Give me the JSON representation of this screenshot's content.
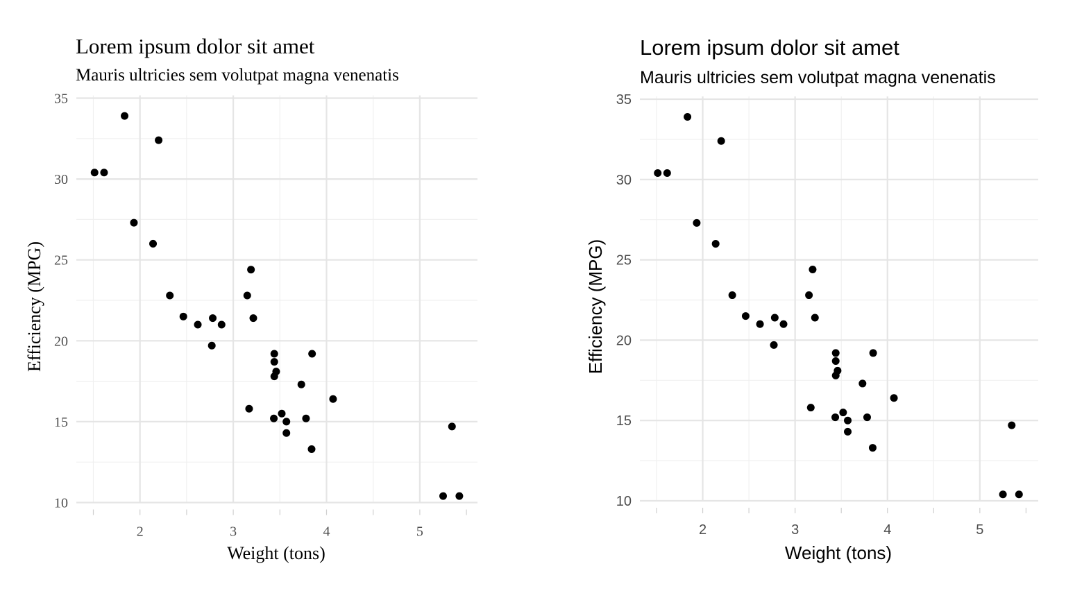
{
  "chart_data": [
    {
      "type": "scatter",
      "title": "Lorem ipsum dolor sit amet",
      "subtitle": "Mauris ultricies sem volutpat magna venenatis",
      "xlabel": "Weight (tons)",
      "ylabel": "Efficiency (MPG)",
      "font": "serif",
      "xlim": [
        1.5,
        5.45
      ],
      "ylim": [
        10,
        35
      ],
      "xticks": [
        "2",
        "3",
        "4",
        "5"
      ],
      "yticks": [
        "10",
        "15",
        "20",
        "25",
        "30",
        "35"
      ],
      "grid": true,
      "point_color": "#000000",
      "points": {
        "x": [
          2.62,
          2.875,
          2.32,
          3.215,
          3.44,
          3.46,
          3.57,
          3.19,
          3.15,
          3.44,
          3.44,
          4.07,
          3.73,
          3.78,
          5.25,
          5.424,
          5.345,
          2.2,
          1.615,
          1.835,
          2.465,
          3.52,
          3.435,
          3.84,
          3.845,
          1.935,
          2.14,
          1.513,
          3.17,
          2.77,
          3.57,
          2.78
        ],
        "y": [
          21.0,
          21.0,
          22.8,
          21.4,
          18.7,
          18.1,
          14.3,
          24.4,
          22.8,
          19.2,
          17.8,
          16.4,
          17.3,
          15.2,
          10.4,
          10.4,
          14.7,
          32.4,
          30.4,
          33.9,
          21.5,
          15.5,
          15.2,
          13.3,
          19.2,
          27.3,
          26.0,
          30.4,
          15.8,
          19.7,
          15.0,
          21.4
        ]
      }
    },
    {
      "type": "scatter",
      "title": "Lorem ipsum dolor sit amet",
      "subtitle": "Mauris ultricies sem volutpat magna venenatis",
      "xlabel": "Weight (tons)",
      "ylabel": "Efficiency (MPG)",
      "font": "sans",
      "xlim": [
        1.5,
        5.45
      ],
      "ylim": [
        10,
        35
      ],
      "xticks": [
        "2",
        "3",
        "4",
        "5"
      ],
      "yticks": [
        "10",
        "15",
        "20",
        "25",
        "30",
        "35"
      ],
      "grid": true,
      "point_color": "#000000",
      "points": {
        "x": [
          2.62,
          2.875,
          2.32,
          3.215,
          3.44,
          3.46,
          3.57,
          3.19,
          3.15,
          3.44,
          3.44,
          4.07,
          3.73,
          3.78,
          5.25,
          5.424,
          5.345,
          2.2,
          1.615,
          1.835,
          2.465,
          3.52,
          3.435,
          3.84,
          3.845,
          1.935,
          2.14,
          1.513,
          3.17,
          2.77,
          3.57,
          2.78
        ],
        "y": [
          21.0,
          21.0,
          22.8,
          21.4,
          18.7,
          18.1,
          14.3,
          24.4,
          22.8,
          19.2,
          17.8,
          16.4,
          17.3,
          15.2,
          10.4,
          10.4,
          14.7,
          32.4,
          30.4,
          33.9,
          21.5,
          15.5,
          15.2,
          13.3,
          19.2,
          27.3,
          26.0,
          30.4,
          15.8,
          19.7,
          15.0,
          21.4
        ]
      }
    }
  ]
}
